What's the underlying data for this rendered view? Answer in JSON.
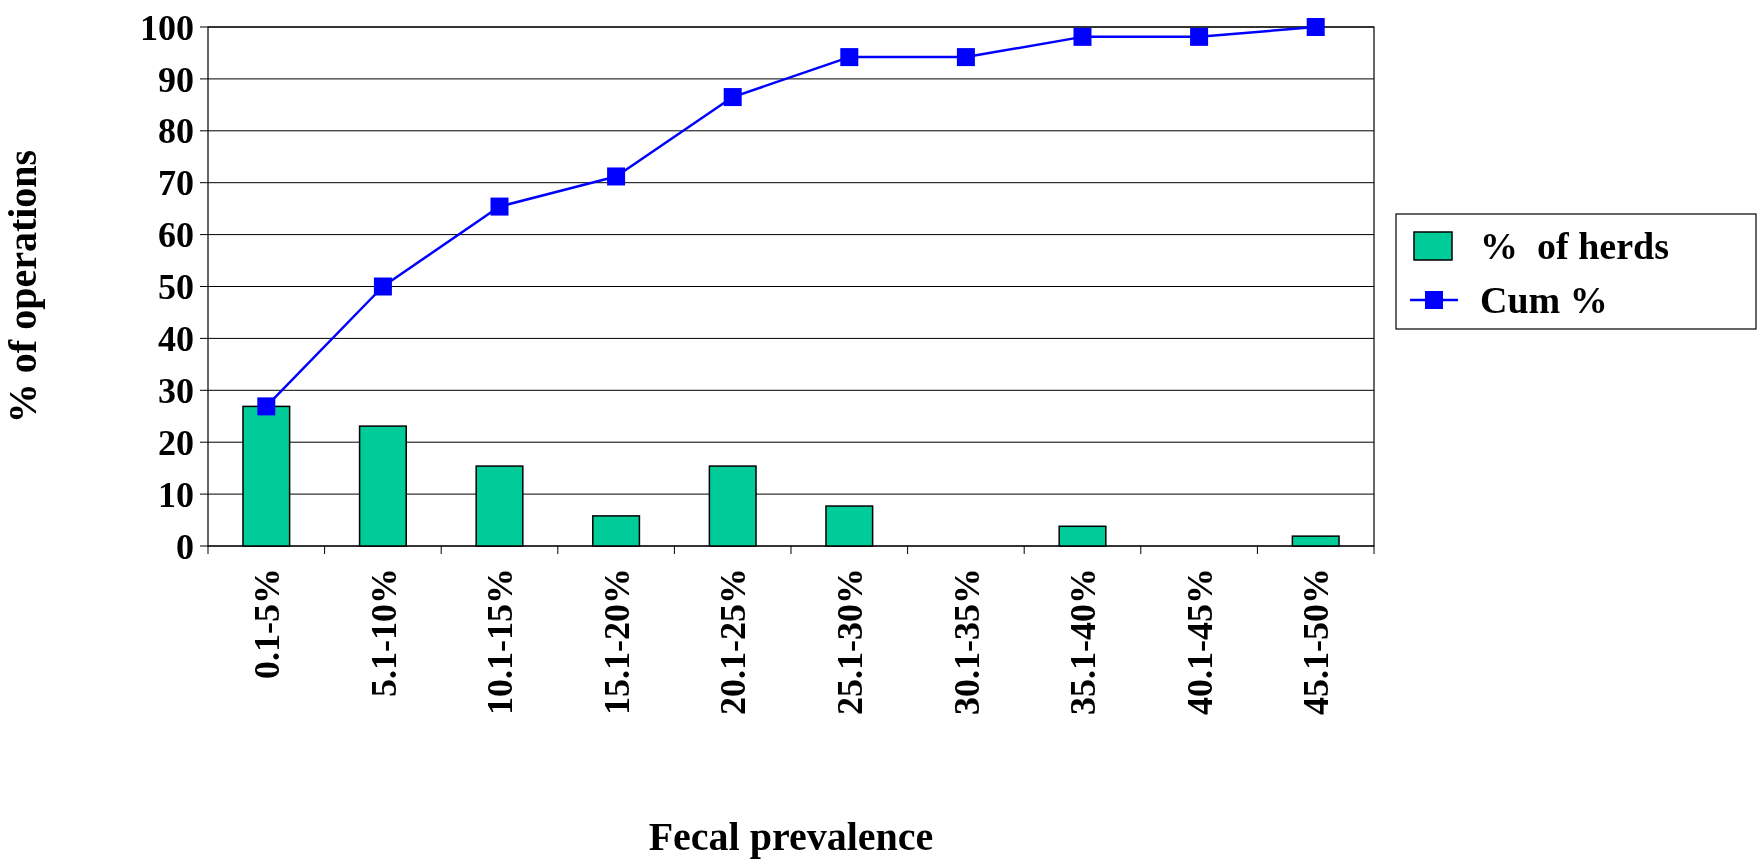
{
  "chart_data": {
    "type": "bar",
    "xlabel": "Fecal prevalence",
    "ylabel": "% of operations",
    "categories": [
      "0.1-5%",
      "5.1-10%",
      "10.1-15%",
      "15.1-20%",
      "20.1-25%",
      "25.1-30%",
      "30.1-35%",
      "35.1-40%",
      "40.1-45%",
      "45.1-50%"
    ],
    "series": [
      {
        "name": "%  of herds",
        "color": "#00cc99",
        "values": [
          26.9,
          23.1,
          15.4,
          5.8,
          15.4,
          7.7,
          0,
          3.8,
          0,
          1.9
        ]
      },
      {
        "name": "Cum %",
        "type": "line",
        "color": "#0000ff",
        "marker": "square",
        "values": [
          26.9,
          50,
          65.4,
          71.2,
          86.5,
          94.2,
          94.2,
          98.1,
          98.1,
          100
        ]
      }
    ],
    "ylim": [
      0,
      100
    ],
    "yticks": [
      0,
      10,
      20,
      30,
      40,
      50,
      60,
      70,
      80,
      90,
      100
    ],
    "grid": "y",
    "legend": "right"
  }
}
